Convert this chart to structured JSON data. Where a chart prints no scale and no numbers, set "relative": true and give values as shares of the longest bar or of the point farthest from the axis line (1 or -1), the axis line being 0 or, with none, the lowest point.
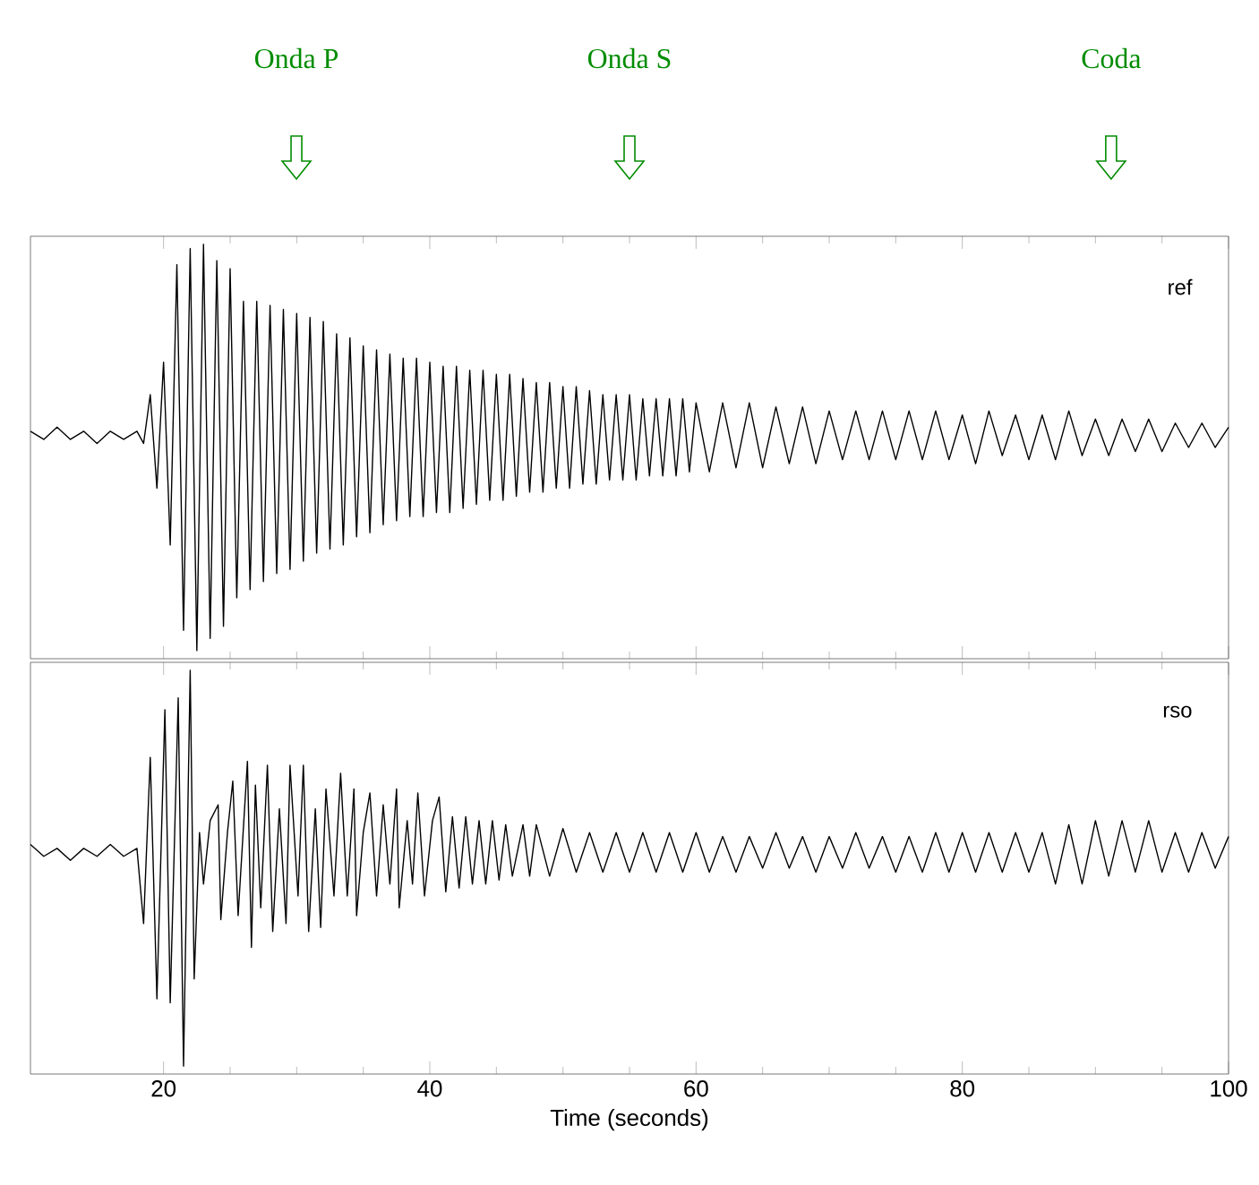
{
  "chart_data": [
    {
      "type": "line",
      "relative": true,
      "xlim": [
        10,
        100
      ],
      "xticks": [
        {
          "value": 20,
          "label": null
        },
        {
          "value": 40,
          "label": null
        },
        {
          "value": 60,
          "label": null
        },
        {
          "value": 80,
          "label": null
        },
        {
          "value": 100,
          "label": null
        }
      ],
      "tick_labels": false,
      "annotations": [
        "Onda P",
        "Onda S",
        "Coda"
      ],
      "x": [
        10,
        11,
        12,
        13,
        14,
        15,
        16,
        17,
        18,
        18.5,
        19,
        19.5,
        20,
        20.5,
        21,
        21.5,
        22,
        22.5,
        23,
        23.5,
        24,
        24.5,
        25,
        25.5,
        26,
        26.5,
        27,
        27.5,
        28,
        28.5,
        29,
        29.5,
        30,
        30.5,
        31,
        31.5,
        32,
        32.5,
        33,
        33.5,
        34,
        34.5,
        35,
        35.5,
        36,
        36.5,
        37,
        37.5,
        38,
        38.5,
        39,
        39.5,
        40,
        40.5,
        41,
        41.5,
        42,
        42.5,
        43,
        43.5,
        44,
        44.5,
        45,
        45.5,
        46,
        46.5,
        47,
        47.5,
        48,
        48.5,
        49,
        49.5,
        50,
        50.5,
        51,
        51.5,
        52,
        52.5,
        53,
        53.5,
        54,
        54.5,
        55,
        55.5,
        56,
        56.5,
        57,
        57.5,
        58,
        58.5,
        59,
        59.5,
        60,
        61,
        62,
        63,
        64,
        65,
        66,
        67,
        68,
        69,
        70,
        71,
        72,
        73,
        74,
        75,
        76,
        77,
        78,
        79,
        80,
        81,
        82,
        83,
        84,
        85,
        86,
        87,
        88,
        89,
        90,
        91,
        92,
        93,
        94,
        95,
        96,
        97,
        98,
        99,
        100
      ],
      "series": [
        {
          "name": "ref",
          "color": "#000000",
          "values": [
            0.54,
            0.52,
            0.55,
            0.52,
            0.54,
            0.51,
            0.54,
            0.52,
            0.54,
            0.51,
            0.63,
            0.4,
            0.71,
            0.26,
            0.95,
            0.05,
            0.99,
            0,
            1,
            0.03,
            0.96,
            0.06,
            0.94,
            0.13,
            0.86,
            0.15,
            0.86,
            0.17,
            0.85,
            0.19,
            0.84,
            0.2,
            0.83,
            0.22,
            0.82,
            0.24,
            0.81,
            0.25,
            0.78,
            0.26,
            0.77,
            0.28,
            0.75,
            0.29,
            0.74,
            0.31,
            0.73,
            0.32,
            0.72,
            0.33,
            0.72,
            0.33,
            0.71,
            0.34,
            0.7,
            0.34,
            0.7,
            0.35,
            0.69,
            0.36,
            0.69,
            0.37,
            0.68,
            0.37,
            0.68,
            0.38,
            0.67,
            0.39,
            0.66,
            0.39,
            0.66,
            0.4,
            0.65,
            0.4,
            0.65,
            0.41,
            0.64,
            0.41,
            0.63,
            0.42,
            0.63,
            0.42,
            0.63,
            0.42,
            0.62,
            0.43,
            0.62,
            0.43,
            0.62,
            0.43,
            0.62,
            0.44,
            0.61,
            0.44,
            0.61,
            0.45,
            0.61,
            0.45,
            0.6,
            0.46,
            0.6,
            0.46,
            0.59,
            0.47,
            0.59,
            0.47,
            0.59,
            0.47,
            0.59,
            0.47,
            0.59,
            0.47,
            0.58,
            0.46,
            0.59,
            0.48,
            0.58,
            0.47,
            0.58,
            0.47,
            0.59,
            0.48,
            0.57,
            0.48,
            0.57,
            0.49,
            0.57,
            0.49,
            0.56,
            0.5,
            0.56,
            0.5,
            0.55
          ]
        }
      ]
    },
    {
      "type": "line",
      "relative": true,
      "xlim": [
        10,
        100
      ],
      "xticks": [
        20,
        40,
        60,
        80,
        100
      ],
      "tick_labels": "x",
      "xlabel": "Time  (seconds)",
      "x": [
        10,
        11,
        12,
        13,
        14,
        15,
        16,
        17,
        18,
        18.5,
        19,
        19.5,
        20.1,
        20.5,
        21.1,
        21.5,
        22,
        22.3,
        22.7,
        23,
        23.5,
        24.1,
        24.3,
        24.8,
        25.2,
        25.6,
        26.3,
        26.6,
        26.9,
        27.3,
        27.8,
        28.2,
        28.7,
        29.2,
        29.5,
        30.1,
        30.5,
        30.9,
        31.4,
        31.8,
        32.2,
        32.8,
        33.3,
        33.8,
        34.3,
        34.5,
        35,
        35.5,
        36,
        36.5,
        37,
        37.5,
        37.7,
        38.3,
        38.7,
        39.1,
        39.6,
        40.2,
        40.7,
        41.2,
        41.7,
        42.2,
        42.7,
        43.2,
        43.7,
        44.2,
        44.7,
        45.2,
        45.7,
        46.2,
        47,
        47.5,
        48,
        49,
        50,
        51,
        52,
        53,
        54,
        55,
        56,
        57,
        58,
        59,
        60,
        61,
        62,
        63,
        64,
        65,
        66,
        67,
        68,
        69,
        70,
        71,
        72,
        73,
        74,
        75,
        76,
        77,
        78,
        79,
        80,
        81,
        82,
        83,
        84,
        85,
        86,
        87,
        88,
        89,
        90,
        91,
        92,
        93,
        94,
        95,
        96,
        97,
        98,
        99,
        100
      ],
      "series": [
        {
          "name": "rso",
          "color": "#000000",
          "values": [
            0.56,
            0.53,
            0.55,
            0.52,
            0.55,
            0.53,
            0.56,
            0.53,
            0.55,
            0.36,
            0.78,
            0.17,
            0.9,
            0.16,
            0.93,
            0,
            1,
            0.22,
            0.59,
            0.46,
            0.62,
            0.66,
            0.37,
            0.59,
            0.72,
            0.38,
            0.77,
            0.3,
            0.71,
            0.4,
            0.76,
            0.34,
            0.65,
            0.36,
            0.76,
            0.43,
            0.76,
            0.34,
            0.65,
            0.35,
            0.7,
            0.43,
            0.74,
            0.43,
            0.7,
            0.38,
            0.59,
            0.69,
            0.43,
            0.66,
            0.46,
            0.7,
            0.4,
            0.62,
            0.46,
            0.69,
            0.43,
            0.62,
            0.68,
            0.44,
            0.63,
            0.45,
            0.63,
            0.46,
            0.62,
            0.46,
            0.62,
            0.47,
            0.61,
            0.48,
            0.61,
            0.48,
            0.61,
            0.48,
            0.6,
            0.49,
            0.59,
            0.49,
            0.59,
            0.49,
            0.59,
            0.49,
            0.59,
            0.49,
            0.59,
            0.49,
            0.58,
            0.49,
            0.58,
            0.5,
            0.59,
            0.5,
            0.58,
            0.49,
            0.58,
            0.5,
            0.59,
            0.5,
            0.58,
            0.49,
            0.58,
            0.49,
            0.59,
            0.49,
            0.59,
            0.49,
            0.59,
            0.49,
            0.59,
            0.49,
            0.59,
            0.46,
            0.61,
            0.46,
            0.62,
            0.48,
            0.62,
            0.49,
            0.62,
            0.49,
            0.59,
            0.49,
            0.59,
            0.5,
            0.58
          ]
        }
      ]
    }
  ]
}
